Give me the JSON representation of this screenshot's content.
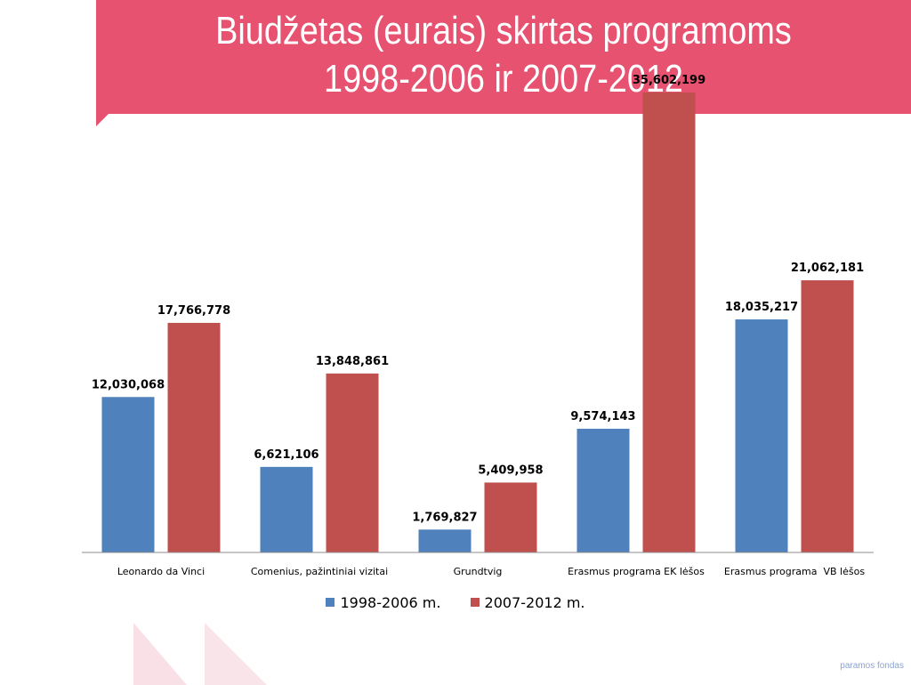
{
  "slide": {
    "title_line1": "Biudžetas (eurais) skirtas programoms",
    "title_line2": "1998-2006 ir 2007-2012",
    "footer_fragment": "paramos fondas"
  },
  "colors": {
    "banner": "#e6526f",
    "series1": "#4f81bd",
    "series2": "#c0504d"
  },
  "chart_data": {
    "type": "bar",
    "title": "",
    "xlabel": "",
    "ylabel": "",
    "categories": [
      "Leonardo da Vinci",
      "Comenius, pažintiniai vizitai",
      "Grundtvig",
      "Erasmus programa EK lėšos",
      "Erasmus programa  VB lėšos"
    ],
    "series": [
      {
        "name": "1998-2006 m.",
        "values": [
          12030068,
          6621106,
          1769827,
          9574143,
          18035217
        ],
        "labels": [
          "12,030,068",
          "6,621,106",
          "1,769,827",
          "9,574,143",
          "18,035,217"
        ]
      },
      {
        "name": "2007-2012 m.",
        "values": [
          17766778,
          13848861,
          5409958,
          35602199,
          21062181
        ],
        "labels": [
          "17,766,778",
          "13,848,861",
          "5,409,958",
          "35,602,199",
          "21,062,181"
        ]
      }
    ],
    "ylim": [
      0,
      40000000
    ],
    "grid": false,
    "legend": "bottom"
  }
}
